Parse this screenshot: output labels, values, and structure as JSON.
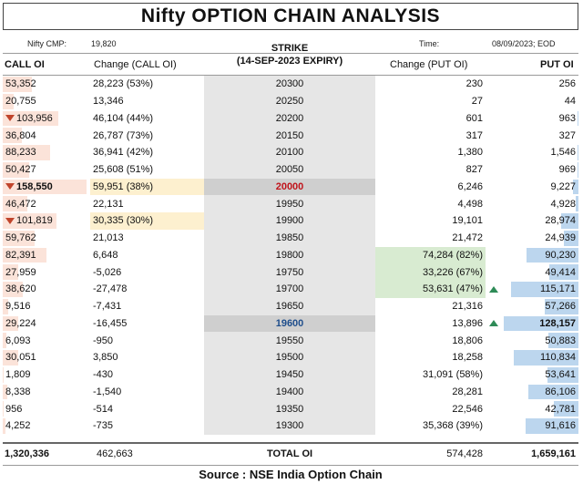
{
  "title": "Nifty OPTION CHAIN ANALYSIS",
  "meta": {
    "cmp_label": "Nifty CMP:",
    "cmp_value": "19,820",
    "time_label": "Time:",
    "time_value": "08/09/2023; EOD"
  },
  "headers": {
    "call_oi": "CALL OI",
    "call_change": "Change (CALL OI)",
    "strike_line1": "STRIKE",
    "strike_line2": "(14-SEP-2023 EXPIRY)",
    "put_change": "Change (PUT OI)",
    "put_oi": "PUT OI"
  },
  "rows": [
    {
      "call_oi": "53,352",
      "call_change": "28,223 (53%)",
      "strike": "20300",
      "put_change": "230",
      "put_oi": "256",
      "call_bar": 0.35,
      "put_bar": 0.0
    },
    {
      "call_oi": "20,755",
      "call_change": "13,346",
      "strike": "20250",
      "put_change": "27",
      "put_oi": "44",
      "call_bar": 0.13,
      "put_bar": 0.0
    },
    {
      "call_oi": "103,956",
      "call_change": "46,104 (44%)",
      "strike": "20200",
      "put_change": "601",
      "put_oi": "963",
      "call_bar": 0.66,
      "put_bar": 0.01,
      "call_marker": "down"
    },
    {
      "call_oi": "36,804",
      "call_change": "26,787 (73%)",
      "strike": "20150",
      "put_change": "317",
      "put_oi": "327",
      "call_bar": 0.23,
      "put_bar": 0.0
    },
    {
      "call_oi": "88,233",
      "call_change": "36,941 (42%)",
      "strike": "20100",
      "put_change": "1,380",
      "put_oi": "1,546",
      "call_bar": 0.56,
      "put_bar": 0.01
    },
    {
      "call_oi": "50,427",
      "call_change": "25,608 (51%)",
      "strike": "20050",
      "put_change": "827",
      "put_oi": "969",
      "call_bar": 0.32,
      "put_bar": 0.01
    },
    {
      "call_oi": "158,550",
      "call_change": "59,951 (38%)",
      "strike": "20000",
      "put_change": "6,246",
      "put_oi": "9,227",
      "call_bar": 1.0,
      "put_bar": 0.07,
      "call_marker": "down",
      "call_bold": true,
      "change_highlight": true,
      "strike_style": "red"
    },
    {
      "call_oi": "46,472",
      "call_change": "22,131",
      "strike": "19950",
      "put_change": "4,498",
      "put_oi": "4,928",
      "call_bar": 0.29,
      "put_bar": 0.04
    },
    {
      "call_oi": "101,819",
      "call_change": "30,335 (30%)",
      "strike": "19900",
      "put_change": "19,101",
      "put_oi": "28,974",
      "call_bar": 0.64,
      "put_bar": 0.23,
      "call_marker": "down",
      "change_highlight": true
    },
    {
      "call_oi": "59,762",
      "call_change": "21,013",
      "strike": "19850",
      "put_change": "21,472",
      "put_oi": "24,939",
      "call_bar": 0.38,
      "put_bar": 0.19
    },
    {
      "call_oi": "82,391",
      "call_change": "6,648",
      "strike": "19800",
      "put_change": "74,284 (82%)",
      "put_oi": "90,230",
      "call_bar": 0.52,
      "put_bar": 0.7,
      "put_change_highlight": true
    },
    {
      "call_oi": "27,959",
      "call_change": "-5,026",
      "strike": "19750",
      "put_change": "33,226 (67%)",
      "put_oi": "49,414",
      "call_bar": 0.18,
      "put_bar": 0.39,
      "put_change_highlight": true
    },
    {
      "call_oi": "38,620",
      "call_change": "-27,478",
      "strike": "19700",
      "put_change": "53,631 (47%)",
      "put_oi": "115,171",
      "call_bar": 0.24,
      "put_bar": 0.9,
      "put_change_highlight": true,
      "put_marker": "up"
    },
    {
      "call_oi": "9,516",
      "call_change": "-7,431",
      "strike": "19650",
      "put_change": "21,316",
      "put_oi": "57,266",
      "call_bar": 0.06,
      "put_bar": 0.45
    },
    {
      "call_oi": "29,224",
      "call_change": "-16,455",
      "strike": "19600",
      "put_change": "13,896",
      "put_oi": "128,157",
      "call_bar": 0.18,
      "put_bar": 1.0,
      "put_marker": "up",
      "put_bold": true,
      "strike_style": "blue"
    },
    {
      "call_oi": "6,093",
      "call_change": "-950",
      "strike": "19550",
      "put_change": "18,806",
      "put_oi": "50,883",
      "call_bar": 0.04,
      "put_bar": 0.4
    },
    {
      "call_oi": "30,051",
      "call_change": "3,850",
      "strike": "19500",
      "put_change": "18,258",
      "put_oi": "110,834",
      "call_bar": 0.19,
      "put_bar": 0.86
    },
    {
      "call_oi": "1,809",
      "call_change": "-430",
      "strike": "19450",
      "put_change": "31,091 (58%)",
      "put_oi": "53,641",
      "call_bar": 0.01,
      "put_bar": 0.42
    },
    {
      "call_oi": "8,338",
      "call_change": "-1,540",
      "strike": "19400",
      "put_change": "28,281",
      "put_oi": "86,106",
      "call_bar": 0.05,
      "put_bar": 0.67
    },
    {
      "call_oi": "956",
      "call_change": "-514",
      "strike": "19350",
      "put_change": "22,546",
      "put_oi": "42,781",
      "call_bar": 0.01,
      "put_bar": 0.33
    },
    {
      "call_oi": "4,252",
      "call_change": "-735",
      "strike": "19300",
      "put_change": "35,368 (39%)",
      "put_oi": "91,616",
      "call_bar": 0.03,
      "put_bar": 0.71
    }
  ],
  "totals": {
    "call_oi": "1,320,336",
    "call_change": "462,663",
    "label": "TOTAL OI",
    "put_change": "574,428",
    "put_oi": "1,659,161"
  },
  "source": "Source : NSE India Option Chain",
  "colors": {
    "call_bar": "#fbe3d9",
    "put_bar": "#bcd6ee",
    "put_change_highlight": "#d8ebd1",
    "call_change_highlight": "#fdf0cf",
    "strike_bg": "#e6e6e6",
    "atm_red": "#c0141b",
    "atm_blue": "#1f4e8c"
  }
}
